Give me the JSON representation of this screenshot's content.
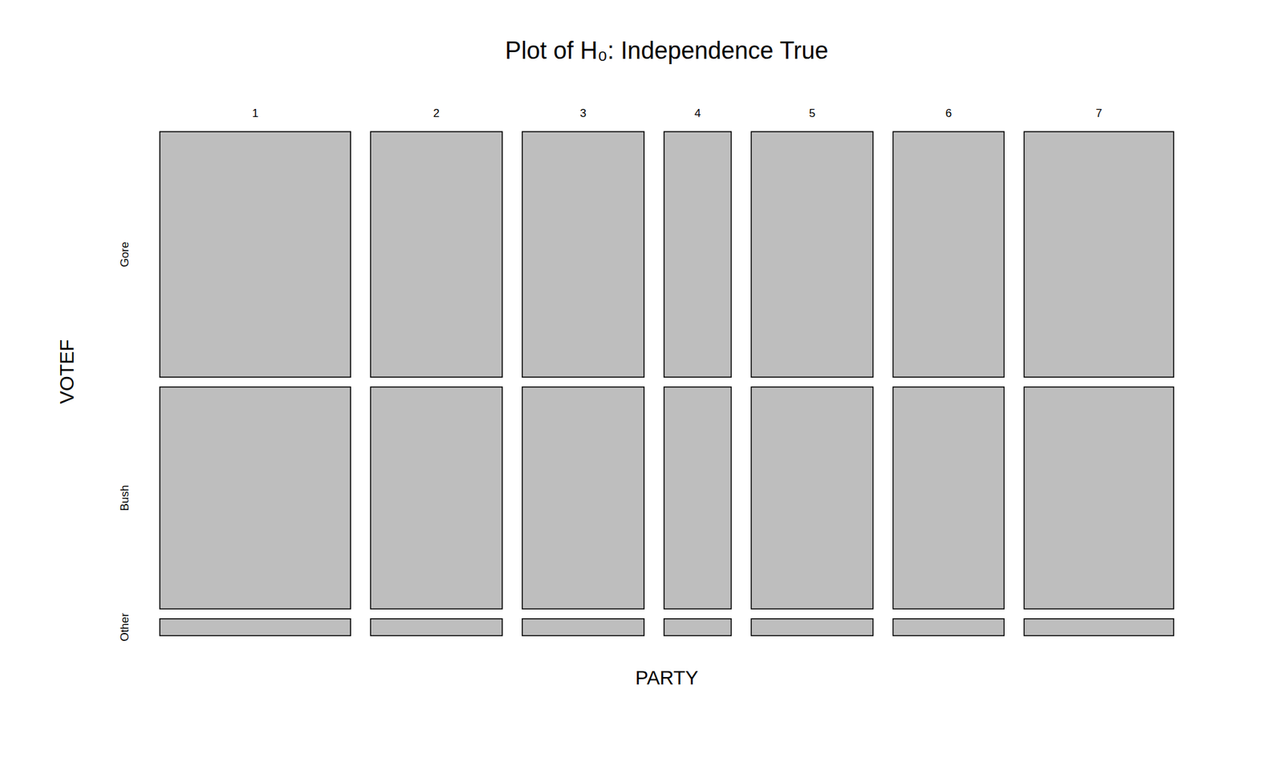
{
  "chart_data": {
    "type": "mosaic",
    "title": "Plot of H₀:  Independence True",
    "x_label": "PARTY",
    "y_label": "VOTEF",
    "categories": [
      "1",
      "2",
      "3",
      "4",
      "5",
      "6",
      "7"
    ],
    "col_proportions": [
      0.213,
      0.147,
      0.136,
      0.075,
      0.136,
      0.124,
      0.167
    ],
    "row_categories": [
      "Gore",
      "Bush",
      "Other"
    ],
    "row_proportions": [
      0.507,
      0.458,
      0.035
    ],
    "color": "#bebebe",
    "grid": false
  }
}
